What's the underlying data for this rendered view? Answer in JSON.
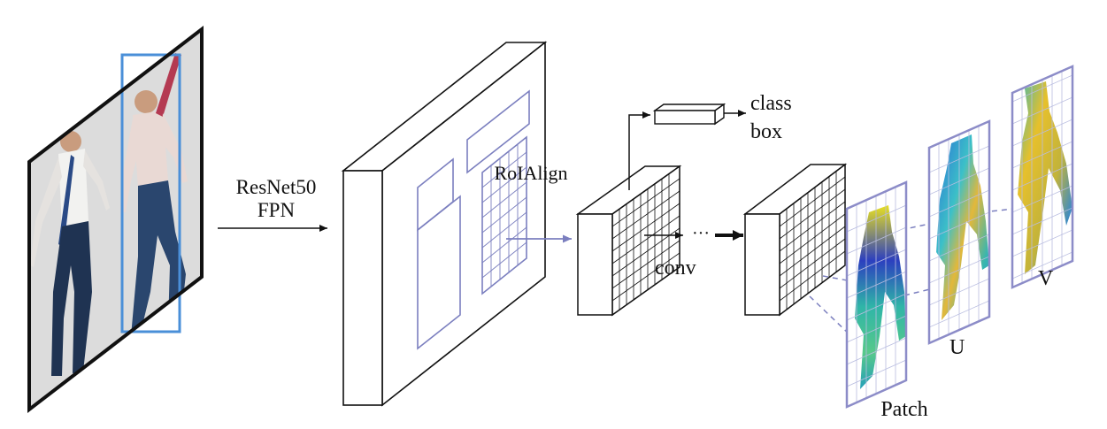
{
  "labels": {
    "backbone_line1": "ResNet50",
    "backbone_line2": "FPN",
    "roialign": "RoIAlign",
    "head_line1": "class",
    "head_line2": "box",
    "conv": "conv",
    "ellipsis": "···",
    "patch": "Patch",
    "u": "U",
    "v": "V"
  },
  "colors": {
    "line": "#111111",
    "roi_purple": "#7b7fbf",
    "person_box_blue": "#4a8fd8",
    "map_frame": "#8c8cc8",
    "map_grid": "#b9bde0",
    "photo_bg": "#dcdcdc"
  },
  "icons": {
    "input_image": "person-photo",
    "feature_map": "3d-block",
    "maps": "body-part-color-maps"
  }
}
